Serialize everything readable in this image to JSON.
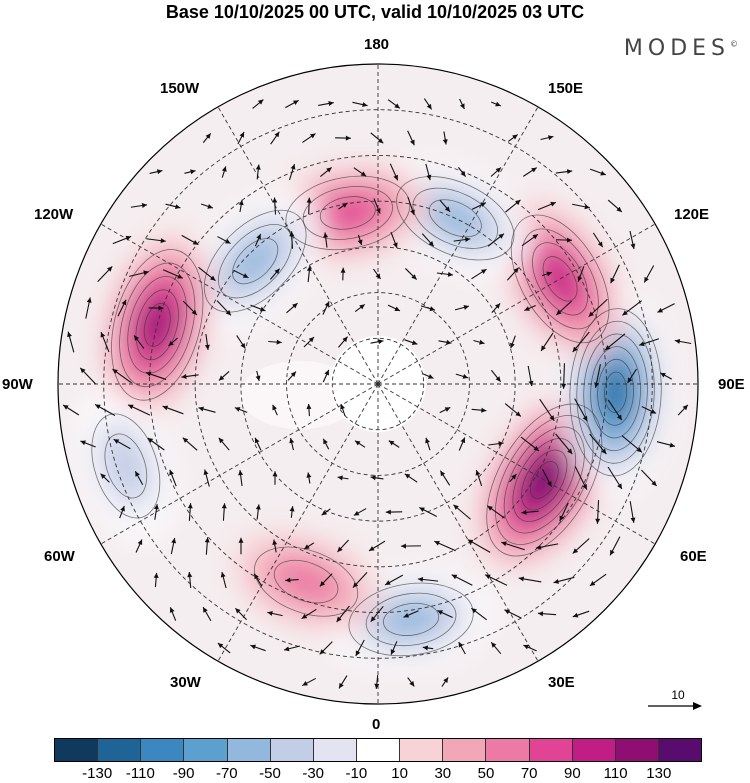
{
  "title": "Base 10/10/2025 00 UTC, valid 10/10/2025 03 UTC",
  "brand": "MODES",
  "brand_mark": "©",
  "longitude_labels": {
    "lon_180": "180",
    "lon_150w": "150W",
    "lon_150e": "150E",
    "lon_120w": "120W",
    "lon_120e": "120E",
    "lon_90w": "90W",
    "lon_90e": "90E",
    "lon_60w": "60W",
    "lon_60e": "60E",
    "lon_30w": "30W",
    "lon_30e": "30E",
    "lon_0": "0"
  },
  "reference_vector": {
    "label": "10"
  },
  "colorbar": {
    "colors": [
      "#0f3a5e",
      "#1f6497",
      "#3b87bf",
      "#5ca0cf",
      "#92b8dd",
      "#c2cde6",
      "#e3e3f1",
      "#ffffff",
      "#f8d3d6",
      "#f2a7b8",
      "#ec7aa5",
      "#e14494",
      "#c01e84",
      "#8e0e72",
      "#5a0b6e"
    ],
    "tick_labels": [
      "-130",
      "-110",
      "-90",
      "-70",
      "-50",
      "-30",
      "-10",
      "10",
      "30",
      "50",
      "70",
      "90",
      "110",
      "130"
    ]
  },
  "anomaly_centers": [
    {
      "lon": 8,
      "lat": 38,
      "value": -70
    },
    {
      "lon": -20,
      "lat": 44,
      "value": 50
    },
    {
      "lon": 60,
      "lat": 48,
      "value": 130
    },
    {
      "lon": 88,
      "lat": 38,
      "value": -130
    },
    {
      "lon": 120,
      "lat": 44,
      "value": 90
    },
    {
      "lon": 155,
      "lat": 50,
      "value": -70
    },
    {
      "lon": -170,
      "lat": 52,
      "value": 70
    },
    {
      "lon": -135,
      "lat": 52,
      "value": -70
    },
    {
      "lon": -105,
      "lat": 40,
      "value": 110
    },
    {
      "lon": -72,
      "lat": 32,
      "value": -50
    }
  ]
}
